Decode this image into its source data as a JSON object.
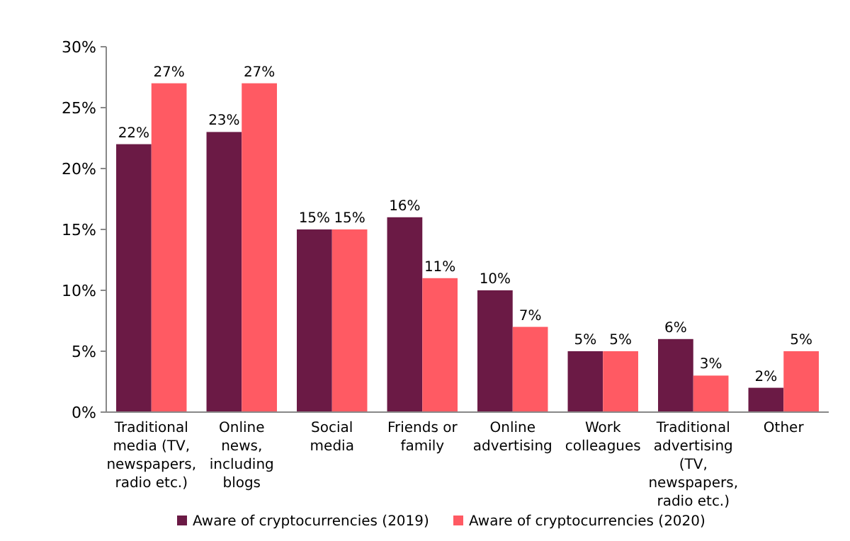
{
  "chart_data": {
    "type": "bar",
    "categories": [
      "Traditional media (TV, newspapers, radio etc.)",
      "Online news, including blogs",
      "Social media",
      "Friends or family",
      "Online advertising",
      "Work colleagues",
      "Traditional advertising (TV, newspapers, radio etc.)",
      "Other"
    ],
    "series": [
      {
        "name": "Aware of cryptocurrencies (2019)",
        "color": "#6b1a45",
        "values": [
          22,
          23,
          15,
          16,
          10,
          5,
          6,
          2
        ],
        "value_labels": [
          "22%",
          "23%",
          "15%",
          "16%",
          "10%",
          "5%",
          "6%",
          "2%"
        ]
      },
      {
        "name": "Aware of cryptocurrencies (2020)",
        "color": "#ff5a63",
        "values": [
          27,
          27,
          15,
          11,
          7,
          5,
          3,
          5
        ],
        "value_labels": [
          "27%",
          "27%",
          "15%",
          "11%",
          "7%",
          "5%",
          "3%",
          "5%"
        ]
      }
    ],
    "ylim": [
      0,
      30
    ],
    "yticks": [
      {
        "value": 0,
        "label": "0%"
      },
      {
        "value": 5,
        "label": "5%"
      },
      {
        "value": 10,
        "label": "10%"
      },
      {
        "value": 15,
        "label": "15%"
      },
      {
        "value": 20,
        "label": "20%"
      },
      {
        "value": 25,
        "label": "25%"
      },
      {
        "value": 30,
        "label": "30%"
      }
    ],
    "legend": "bottom",
    "grid": false
  }
}
